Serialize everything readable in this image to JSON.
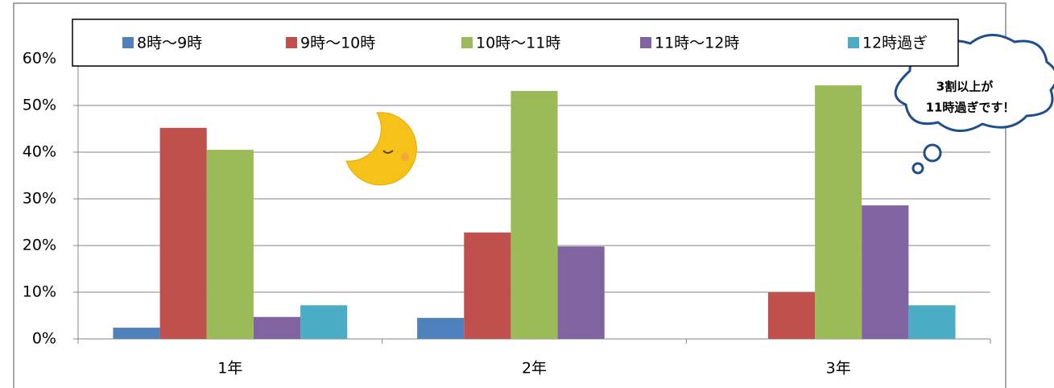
{
  "chart_data": {
    "type": "bar",
    "categories": [
      "1年",
      "2年",
      "3年"
    ],
    "series": [
      {
        "name": "8時～9時",
        "color": "#4f81bd",
        "values": [
          2.4,
          4.5,
          0
        ]
      },
      {
        "name": "9時～10時",
        "color": "#c0504d",
        "values": [
          45.2,
          22.8,
          10.0
        ]
      },
      {
        "name": "10時～11時",
        "color": "#9bbb59",
        "values": [
          40.5,
          53.1,
          54.3
        ]
      },
      {
        "name": "11時～12時",
        "color": "#8064a2",
        "values": [
          4.7,
          19.8,
          28.6
        ]
      },
      {
        "name": "12時過ぎ",
        "color": "#4bacc6",
        "values": [
          7.2,
          0,
          7.2
        ]
      }
    ],
    "ylim": [
      0,
      60
    ],
    "yticks": [
      {
        "value": 0,
        "label": "0%"
      },
      {
        "value": 10,
        "label": "10%"
      },
      {
        "value": 20,
        "label": "20%"
      },
      {
        "value": 30,
        "label": "30%"
      },
      {
        "value": 40,
        "label": "40%"
      },
      {
        "value": 50,
        "label": "50%"
      },
      {
        "value": 60,
        "label": "60%"
      }
    ],
    "grid": true,
    "annotations": [
      "3割以上が",
      "11時過ぎです！"
    ]
  }
}
